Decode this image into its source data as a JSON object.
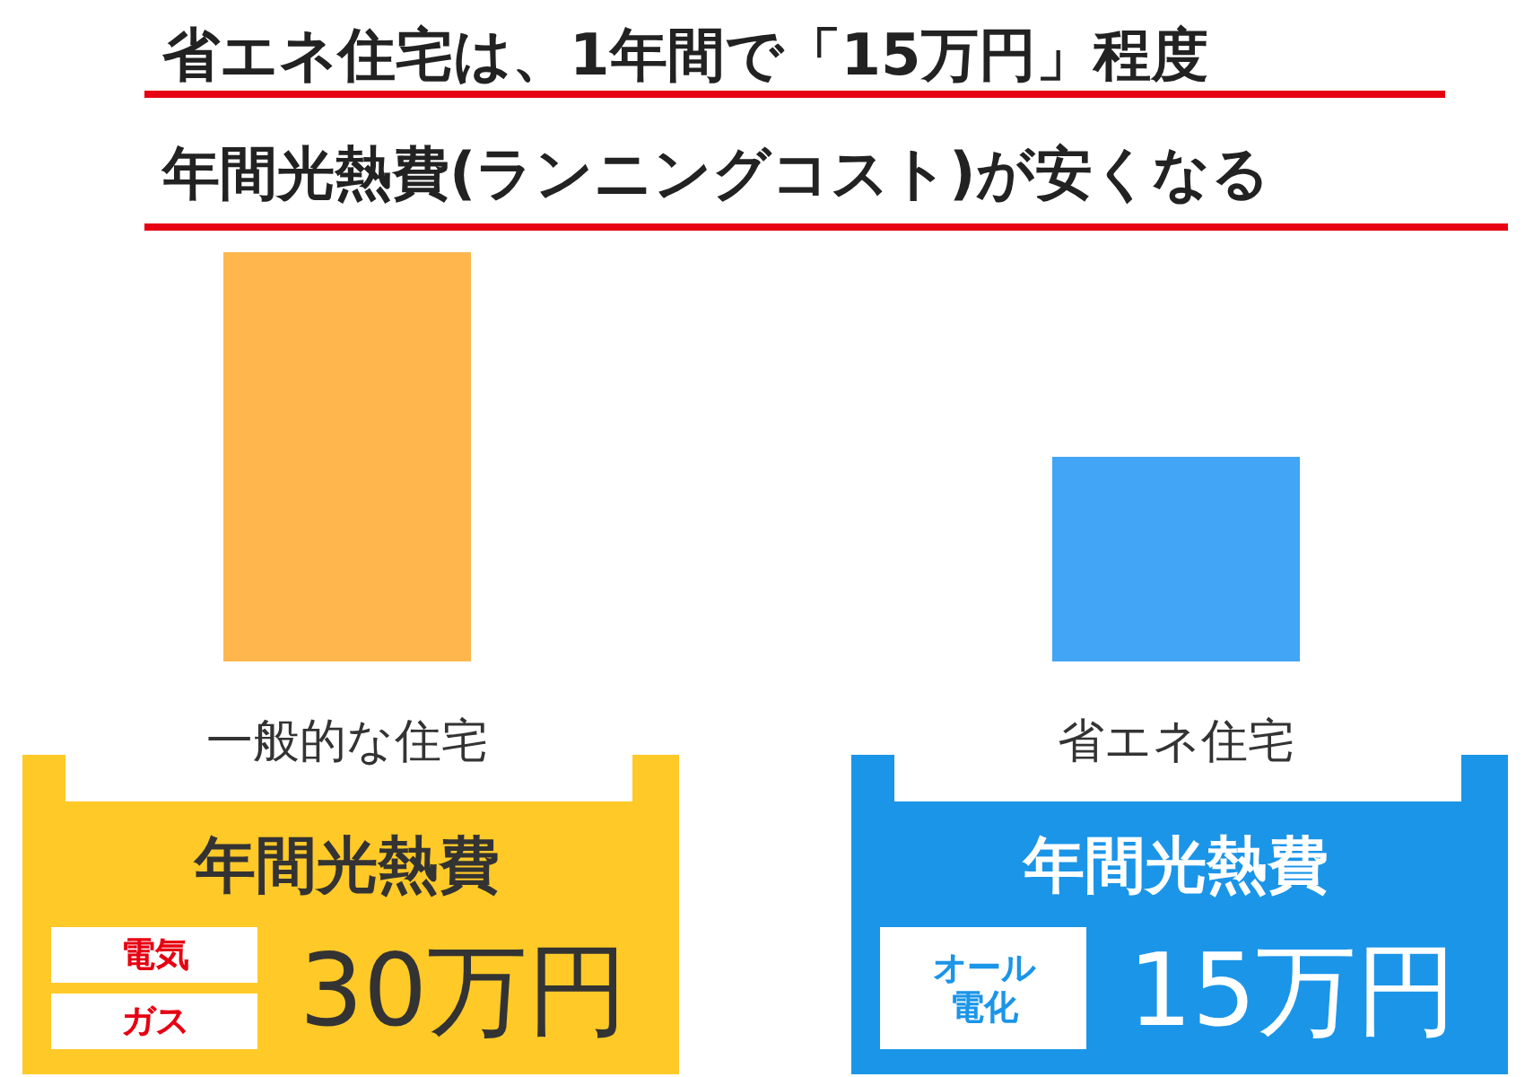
{
  "chart_data": {
    "type": "bar",
    "title": "省エネ住宅は、1年間で「15万円」程度",
    "subtitle": "年間光熱費(ランニングコスト)が安くなる",
    "categories": [
      "一般的な住宅",
      "省エネ住宅"
    ],
    "values": [
      30,
      15
    ],
    "colors": [
      "#ffb74d",
      "#42a5f5"
    ],
    "value_labels": [
      "30万円",
      "15万円"
    ],
    "annotations": [
      "年間光熱費",
      "電気",
      "ガス",
      "年間光熱費",
      "オール電化"
    ]
  }
}
